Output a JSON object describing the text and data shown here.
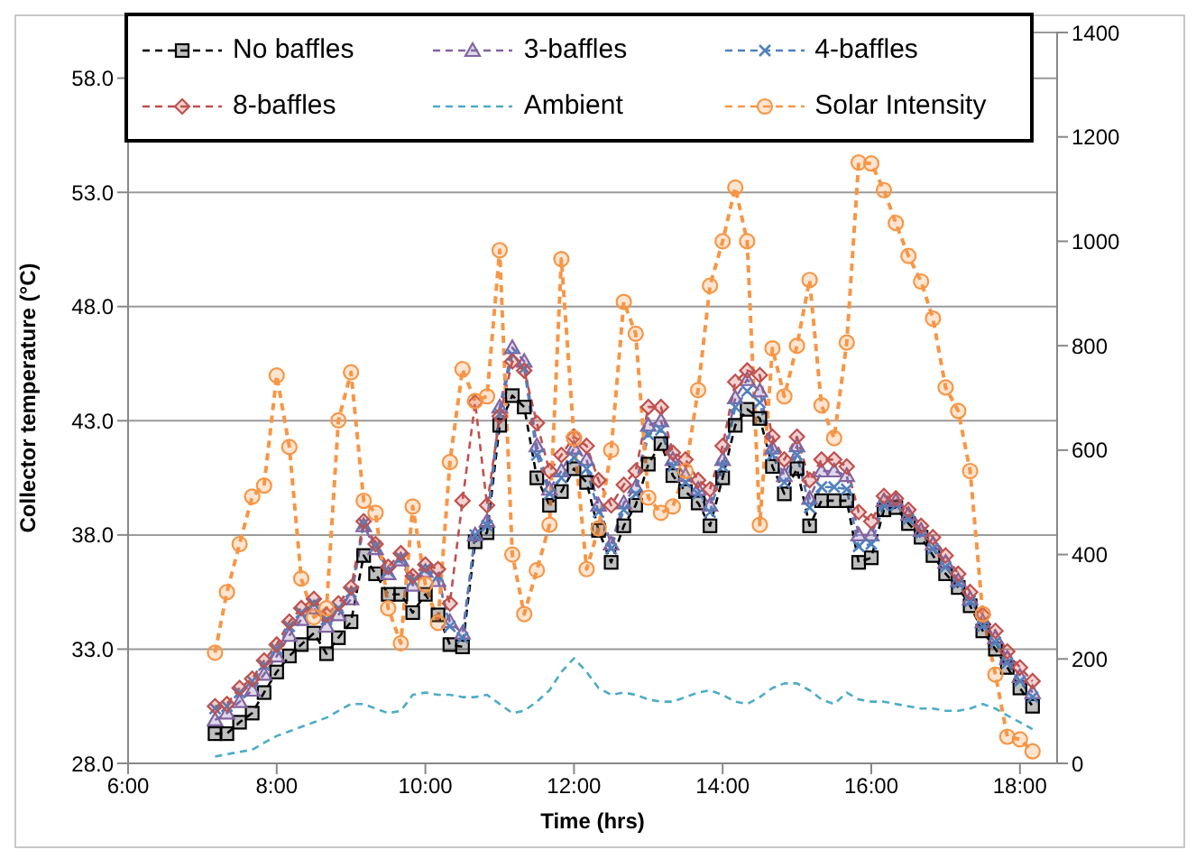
{
  "chart_data": {
    "type": "line",
    "xlabel": "Time (hrs)",
    "ylabel": "Collector temperature (°C)",
    "x": [
      7.17,
      7.33,
      7.5,
      7.67,
      7.83,
      8,
      8.17,
      8.33,
      8.5,
      8.67,
      8.83,
      9,
      9.17,
      9.33,
      9.5,
      9.67,
      9.83,
      10,
      10.17,
      10.33,
      10.5,
      10.67,
      10.83,
      11,
      11.17,
      11.33,
      11.5,
      11.67,
      11.83,
      12,
      12.17,
      12.33,
      12.5,
      12.67,
      12.83,
      13,
      13.17,
      13.33,
      13.5,
      13.67,
      13.83,
      14,
      14.17,
      14.33,
      14.5,
      14.67,
      14.83,
      15,
      15.17,
      15.33,
      15.5,
      15.67,
      15.83,
      16,
      16.17,
      16.33,
      16.5,
      16.67,
      16.83,
      17,
      17.17,
      17.33,
      17.5,
      17.67,
      17.83,
      18,
      18.17
    ],
    "series": [
      {
        "name": "No baffles",
        "color": "#000000",
        "marker": "square",
        "values": [
          29.3,
          29.3,
          29.8,
          30.2,
          31.1,
          32.0,
          32.7,
          33.2,
          33.7,
          32.8,
          33.5,
          34.2,
          37.1,
          36.3,
          35.4,
          35.4,
          34.6,
          35.4,
          34.5,
          33.2,
          33.1,
          37.7,
          38.1,
          42.8,
          44.1,
          43.6,
          40.5,
          39.3,
          39.9,
          40.9,
          40.3,
          38.2,
          36.8,
          38.4,
          39.3,
          41.1,
          42.0,
          40.6,
          39.9,
          39.4,
          38.4,
          40.5,
          42.8,
          43.5,
          43.1,
          41.0,
          39.8,
          40.9,
          38.4,
          39.5,
          39.5,
          39.5,
          36.8,
          37.0,
          39.1,
          39.2,
          38.5,
          37.9,
          37.1,
          36.3,
          35.7,
          34.9,
          33.8,
          33.0,
          32.2,
          31.3,
          30.5
        ]
      },
      {
        "name": "3-baffles",
        "color": "#8064a2",
        "marker": "triangle",
        "values": [
          29.9,
          30.2,
          30.7,
          31.2,
          31.9,
          32.7,
          33.6,
          34.3,
          34.8,
          34.0,
          34.5,
          35.2,
          38.4,
          37.4,
          36.3,
          36.9,
          35.8,
          36.4,
          36.0,
          34.2,
          33.7,
          38.0,
          38.6,
          43.6,
          46.2,
          45.6,
          41.9,
          40.0,
          40.8,
          41.8,
          41.3,
          39.3,
          37.6,
          39.4,
          40.1,
          42.8,
          43.0,
          41.3,
          40.6,
          40.0,
          39.3,
          41.3,
          44.0,
          44.8,
          44.3,
          41.8,
          40.6,
          41.9,
          39.6,
          40.8,
          40.8,
          40.6,
          38.0,
          38.0,
          39.5,
          39.5,
          38.9,
          38.2,
          37.6,
          36.8,
          36.0,
          35.2,
          34.2,
          33.5,
          32.6,
          31.8,
          31.1
        ]
      },
      {
        "name": "4-baffles",
        "color": "#4f81bd",
        "marker": "cross",
        "values": [
          30.4,
          30.5,
          31.1,
          31.6,
          32.3,
          33.0,
          34.0,
          34.6,
          35.0,
          34.3,
          34.8,
          35.5,
          38.5,
          37.5,
          36.4,
          37.0,
          36.0,
          36.5,
          36.2,
          34.0,
          33.5,
          38.0,
          38.4,
          43.3,
          45.9,
          45.3,
          41.5,
          39.8,
          40.5,
          41.4,
          40.9,
          39.0,
          37.4,
          39.1,
          39.8,
          42.4,
          42.6,
          41.0,
          40.3,
          39.8,
          39.0,
          41.0,
          43.6,
          44.3,
          43.8,
          41.5,
          40.3,
          41.5,
          39.2,
          40.1,
          40.1,
          40.0,
          37.5,
          37.6,
          39.3,
          39.3,
          38.7,
          38.1,
          37.4,
          36.6,
          35.9,
          35.1,
          34.0,
          33.3,
          32.4,
          31.6,
          30.9
        ]
      },
      {
        "name": "8-baffles",
        "color": "#c0504d",
        "marker": "diamond",
        "values": [
          30.5,
          30.6,
          31.3,
          31.7,
          32.5,
          33.2,
          34.2,
          34.8,
          35.2,
          34.5,
          35.0,
          35.7,
          38.6,
          37.6,
          36.6,
          37.2,
          36.2,
          36.7,
          36.5,
          35.0,
          39.5,
          43.8,
          39.3,
          43.2,
          45.6,
          45.2,
          42.9,
          40.8,
          41.5,
          42.3,
          41.9,
          40.4,
          39.3,
          40.2,
          40.8,
          43.6,
          43.6,
          41.6,
          41.3,
          40.4,
          40.0,
          41.9,
          44.7,
          45.2,
          45.0,
          42.3,
          41.3,
          42.3,
          40.4,
          41.3,
          41.3,
          41.0,
          39.0,
          38.6,
          39.7,
          39.6,
          39.1,
          38.4,
          37.9,
          37.1,
          36.3,
          35.5,
          34.5,
          33.8,
          32.9,
          32.2,
          31.6
        ]
      },
      {
        "name": "Ambient",
        "color": "#4bacc6",
        "marker": "none",
        "values": [
          28.3,
          28.4,
          28.5,
          28.6,
          28.9,
          29.2,
          29.4,
          29.6,
          29.8,
          30.0,
          30.3,
          30.6,
          30.6,
          30.4,
          30.2,
          30.3,
          31.0,
          31.1,
          31.0,
          31.0,
          30.9,
          30.9,
          31.0,
          30.6,
          30.2,
          30.3,
          30.7,
          31.2,
          32.0,
          32.6,
          32.0,
          31.3,
          31.0,
          31.1,
          31.0,
          30.8,
          30.7,
          30.7,
          30.9,
          31.1,
          31.2,
          31.0,
          30.7,
          30.6,
          30.9,
          31.3,
          31.5,
          31.5,
          31.2,
          30.8,
          30.6,
          31.1,
          30.8,
          30.7,
          30.7,
          30.6,
          30.5,
          30.4,
          30.4,
          30.3,
          30.3,
          30.4,
          30.6,
          30.4,
          30.1,
          29.8,
          29.5
        ]
      },
      {
        "name": "Solar Intensity",
        "color": "#f79646",
        "marker": "circle",
        "axis": "y2",
        "values": [
          212,
          328,
          420,
          511,
          532,
          743,
          606,
          354,
          280,
          297,
          657,
          749,
          503,
          480,
          297,
          230,
          492,
          343,
          269,
          577,
          755,
          694,
          703,
          983,
          400,
          286,
          370,
          457,
          966,
          623,
          372,
          450,
          600,
          884,
          823,
          509,
          480,
          492,
          560,
          715,
          915,
          1000,
          1103,
          1000,
          457,
          795,
          703,
          800,
          926,
          686,
          623,
          806,
          1151,
          1149,
          1098,
          1035,
          972,
          923,
          852,
          720,
          675,
          560,
          286,
          170,
          51,
          46,
          23
        ]
      }
    ],
    "xlim": [
      6,
      18.5
    ],
    "xticks": [
      {
        "value": 6,
        "label": "6:00"
      },
      {
        "value": 8,
        "label": "8:00"
      },
      {
        "value": 10,
        "label": "10:00"
      },
      {
        "value": 12,
        "label": "12:00"
      },
      {
        "value": 14,
        "label": "14:00"
      },
      {
        "value": 16,
        "label": "16:00"
      },
      {
        "value": 18,
        "label": "18:00"
      }
    ],
    "ylim": [
      28,
      60
    ],
    "yticks": [
      {
        "value": 28,
        "label": "28.0"
      },
      {
        "value": 33,
        "label": "33.0"
      },
      {
        "value": 38,
        "label": "38.0"
      },
      {
        "value": 43,
        "label": "43.0"
      },
      {
        "value": 48,
        "label": "48.0"
      },
      {
        "value": 53,
        "label": "53.0"
      },
      {
        "value": 58,
        "label": "58.0"
      }
    ],
    "y2lim": [
      0,
      1400
    ],
    "y2ticks": [
      0,
      200,
      400,
      600,
      800,
      1000,
      1200,
      1400
    ],
    "grid": "y",
    "legend": "top",
    "line_style": "dashed"
  }
}
